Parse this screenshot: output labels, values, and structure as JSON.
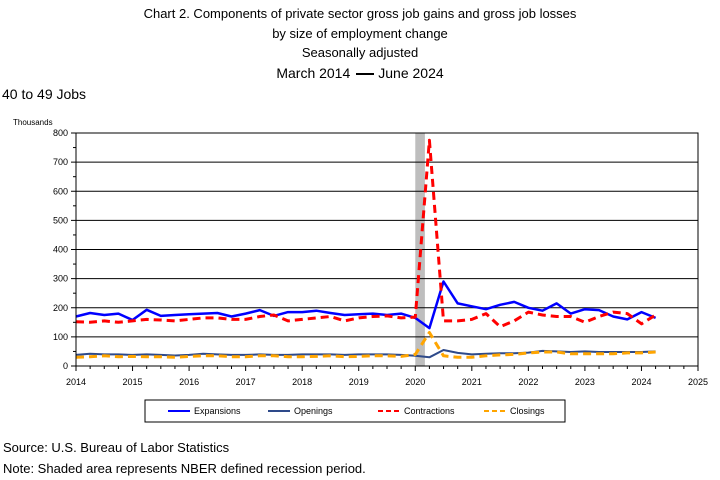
{
  "title_lines": [
    "Chart 2. Components of private sector gross job gains and gross job losses",
    "by size of employment change",
    "Seasonally adjusted"
  ],
  "date_range": {
    "start": "March 2014",
    "end": "June 2024"
  },
  "source": "Source: U.S. Bureau of Labor Statistics",
  "note": "Note: Shaded area represents NBER defined recession period.",
  "chart_data": {
    "type": "line",
    "subtitle": "40 to 49 Jobs",
    "ylabel": "Thousands",
    "xlim": [
      2014,
      2025
    ],
    "ylim": [
      0,
      800
    ],
    "y_ticks": [
      0,
      100,
      200,
      300,
      400,
      500,
      600,
      700,
      800
    ],
    "x_ticks": [
      2014,
      2015,
      2016,
      2017,
      2018,
      2019,
      2020,
      2021,
      2022,
      2023,
      2024,
      2025
    ],
    "grid": "horizontal",
    "legend_position": "bottom",
    "recession": [
      2020.0,
      2020.17
    ],
    "x": [
      2014.0,
      2014.25,
      2014.5,
      2014.75,
      2015.0,
      2015.25,
      2015.5,
      2015.75,
      2016.0,
      2016.25,
      2016.5,
      2016.75,
      2017.0,
      2017.25,
      2017.5,
      2017.75,
      2018.0,
      2018.25,
      2018.5,
      2018.75,
      2019.0,
      2019.25,
      2019.5,
      2019.75,
      2020.0,
      2020.25,
      2020.5,
      2020.75,
      2021.0,
      2021.25,
      2021.5,
      2021.75,
      2022.0,
      2022.25,
      2022.5,
      2022.75,
      2023.0,
      2023.25,
      2023.5,
      2023.75,
      2024.0,
      2024.25
    ],
    "series": [
      {
        "name": "Expansions",
        "color": "#0000ff",
        "dash": "solid",
        "values": [
          170,
          182,
          175,
          180,
          158,
          193,
          172,
          175,
          178,
          180,
          182,
          170,
          180,
          192,
          172,
          185,
          185,
          190,
          182,
          175,
          178,
          180,
          175,
          180,
          165,
          130,
          290,
          215,
          205,
          195,
          210,
          220,
          200,
          190,
          215,
          180,
          195,
          192,
          170,
          160,
          185,
          165
        ]
      },
      {
        "name": "Openings",
        "color": "#2e4a8a",
        "dash": "solid",
        "values": [
          38,
          42,
          40,
          40,
          38,
          40,
          38,
          36,
          38,
          42,
          40,
          38,
          38,
          40,
          38,
          38,
          40,
          40,
          40,
          38,
          40,
          40,
          40,
          38,
          35,
          30,
          55,
          45,
          40,
          42,
          44,
          44,
          46,
          52,
          50,
          48,
          50,
          48,
          48,
          48,
          48,
          50
        ]
      },
      {
        "name": "Contractions",
        "color": "#ff0000",
        "dash": "dashed",
        "values": [
          152,
          150,
          155,
          150,
          155,
          160,
          158,
          155,
          160,
          165,
          165,
          160,
          160,
          170,
          175,
          155,
          160,
          165,
          170,
          155,
          165,
          170,
          172,
          165,
          168,
          775,
          155,
          155,
          160,
          180,
          135,
          155,
          185,
          175,
          170,
          170,
          150,
          170,
          185,
          180,
          145,
          175
        ]
      },
      {
        "name": "Closings",
        "color": "#ffa500",
        "dash": "dashed",
        "values": [
          30,
          32,
          35,
          32,
          33,
          32,
          32,
          30,
          33,
          35,
          35,
          32,
          32,
          35,
          35,
          32,
          32,
          33,
          35,
          32,
          33,
          35,
          35,
          33,
          40,
          115,
          35,
          30,
          30,
          35,
          38,
          40,
          45,
          48,
          48,
          42,
          42,
          42,
          42,
          45,
          45,
          48
        ]
      }
    ]
  }
}
